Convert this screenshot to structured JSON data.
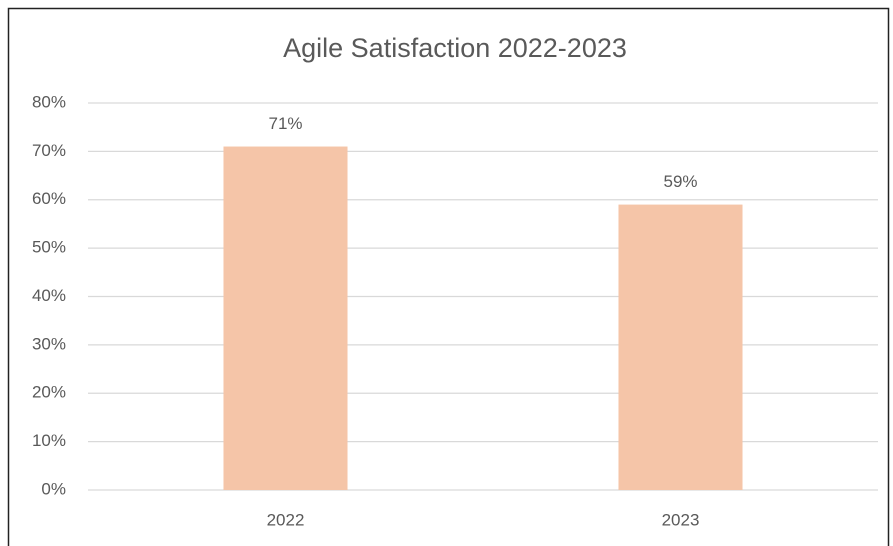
{
  "chart_data": {
    "type": "bar",
    "title": "Agile Satisfaction 2022-2023",
    "categories": [
      "2022",
      "2023"
    ],
    "values": [
      71,
      59
    ],
    "value_labels": [
      "71%",
      "59%"
    ],
    "color": "#f5c5a8",
    "ylim": [
      0,
      80
    ],
    "yticks": [
      {
        "value": 0,
        "label": "0%"
      },
      {
        "value": 10,
        "label": "10%"
      },
      {
        "value": 20,
        "label": "20%"
      },
      {
        "value": 30,
        "label": "30%"
      },
      {
        "value": 40,
        "label": "40%"
      },
      {
        "value": 50,
        "label": "50%"
      },
      {
        "value": 60,
        "label": "60%"
      },
      {
        "value": 70,
        "label": "70%"
      },
      {
        "value": 80,
        "label": "80%"
      }
    ],
    "grid": true
  }
}
